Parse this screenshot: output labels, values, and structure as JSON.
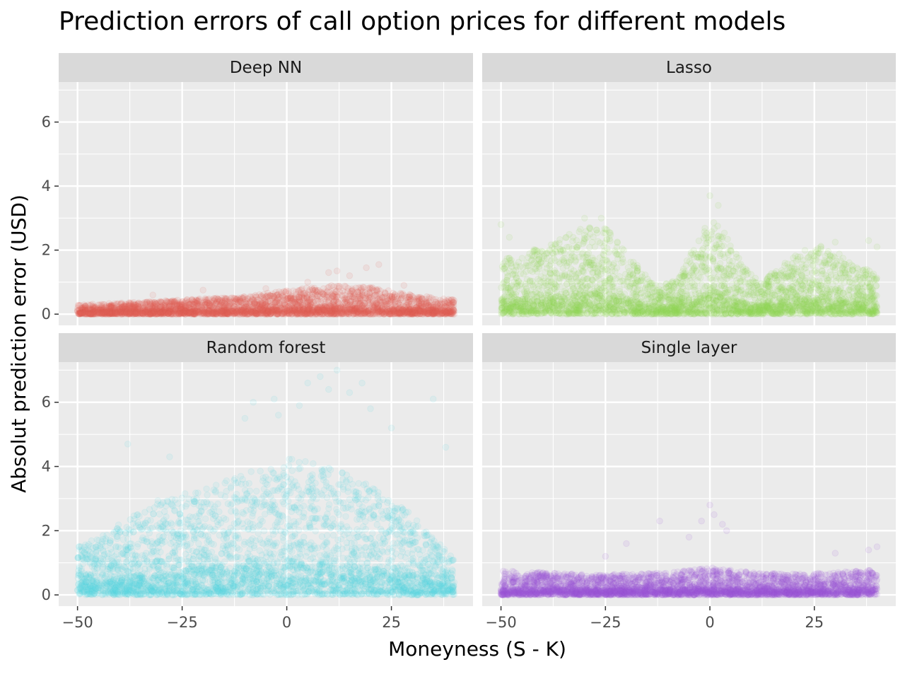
{
  "chart_data": {
    "type": "scatter",
    "title": "Prediction errors of call option prices for different models",
    "xlabel": "Moneyness (S - K)",
    "ylabel": "Absolut prediction error (USD)",
    "xlim": [
      -54.5,
      44.5
    ],
    "ylim": [
      -0.35,
      7.25
    ],
    "x_ticks": [
      -50,
      -25,
      0,
      25
    ],
    "x_tick_labels": [
      "−50",
      "−25",
      "0",
      "25"
    ],
    "y_ticks": [
      0,
      2,
      4,
      6
    ],
    "y_tick_labels": [
      "0",
      "2",
      "4",
      "6"
    ],
    "grid": true,
    "legend": "none",
    "point_alpha": 0.1,
    "panels": [
      {
        "name": "Deep NN",
        "color": "#e0605a",
        "x_range": [
          -50,
          40
        ],
        "envelope": [
          [
            -50,
            0.3
          ],
          [
            -40,
            0.35
          ],
          [
            -25,
            0.45
          ],
          [
            -10,
            0.55
          ],
          [
            0,
            0.75
          ],
          [
            10,
            0.9
          ],
          [
            20,
            0.85
          ],
          [
            30,
            0.6
          ],
          [
            40,
            0.45
          ]
        ],
        "outliers": [
          [
            -32,
            0.6
          ],
          [
            -20,
            0.75
          ],
          [
            -5,
            0.8
          ],
          [
            5,
            1.0
          ],
          [
            10,
            1.3
          ],
          [
            12,
            1.35
          ],
          [
            15,
            1.2
          ],
          [
            19,
            1.45
          ],
          [
            22,
            1.55
          ],
          [
            28,
            0.9
          ]
        ]
      },
      {
        "name": "Lasso",
        "color": "#8fdc55",
        "x_range": [
          -50,
          40
        ],
        "envelope": [
          [
            -50,
            1.7
          ],
          [
            -45,
            1.9
          ],
          [
            -38,
            2.2
          ],
          [
            -30,
            2.75
          ],
          [
            -25,
            2.7
          ],
          [
            -20,
            2.0
          ],
          [
            -15,
            1.2
          ],
          [
            -12,
            0.9
          ],
          [
            -8,
            1.1
          ],
          [
            -4,
            2.2
          ],
          [
            0,
            3.2
          ],
          [
            4,
            2.5
          ],
          [
            8,
            1.5
          ],
          [
            12,
            1.0
          ],
          [
            16,
            1.4
          ],
          [
            22,
            2.0
          ],
          [
            26,
            2.15
          ],
          [
            30,
            2.0
          ],
          [
            35,
            1.5
          ],
          [
            40,
            1.3
          ]
        ],
        "outliers": [
          [
            -50,
            2.8
          ],
          [
            -48,
            2.4
          ],
          [
            -30,
            3.0
          ],
          [
            -26,
            3.0
          ],
          [
            0,
            3.7
          ],
          [
            2,
            3.4
          ],
          [
            30,
            2.25
          ],
          [
            38,
            2.3
          ],
          [
            40,
            2.1
          ]
        ]
      },
      {
        "name": "Random forest",
        "color": "#58d3dd",
        "x_range": [
          -50,
          40
        ],
        "envelope": [
          [
            -50,
            1.5
          ],
          [
            -45,
            1.8
          ],
          [
            -40,
            2.2
          ],
          [
            -30,
            3.0
          ],
          [
            -20,
            3.3
          ],
          [
            -10,
            3.8
          ],
          [
            0,
            4.3
          ],
          [
            10,
            4.0
          ],
          [
            20,
            3.4
          ],
          [
            30,
            2.5
          ],
          [
            35,
            1.8
          ],
          [
            40,
            1.2
          ]
        ],
        "outliers": [
          [
            -38,
            4.7
          ],
          [
            -28,
            4.3
          ],
          [
            -10,
            5.5
          ],
          [
            -8,
            6.0
          ],
          [
            -3,
            6.1
          ],
          [
            -2,
            5.6
          ],
          [
            3,
            5.9
          ],
          [
            5,
            6.6
          ],
          [
            8,
            6.8
          ],
          [
            10,
            6.4
          ],
          [
            12,
            7.0
          ],
          [
            15,
            6.3
          ],
          [
            18,
            6.6
          ],
          [
            20,
            5.8
          ],
          [
            25,
            5.2
          ],
          [
            35,
            6.1
          ],
          [
            38,
            4.6
          ]
        ]
      },
      {
        "name": "Single layer",
        "color": "#9b5adb",
        "x_range": [
          -50,
          40
        ],
        "envelope": [
          [
            -50,
            0.75
          ],
          [
            -40,
            0.7
          ],
          [
            -30,
            0.65
          ],
          [
            -20,
            0.65
          ],
          [
            -10,
            0.7
          ],
          [
            0,
            0.85
          ],
          [
            10,
            0.7
          ],
          [
            20,
            0.65
          ],
          [
            30,
            0.7
          ],
          [
            40,
            0.8
          ]
        ],
        "outliers": [
          [
            -25,
            1.2
          ],
          [
            -20,
            1.6
          ],
          [
            -12,
            2.3
          ],
          [
            -5,
            1.8
          ],
          [
            -2,
            2.3
          ],
          [
            0,
            2.8
          ],
          [
            1,
            2.5
          ],
          [
            3,
            2.2
          ],
          [
            4,
            2.0
          ],
          [
            30,
            1.3
          ],
          [
            38,
            1.4
          ],
          [
            40,
            1.5
          ]
        ]
      }
    ]
  }
}
